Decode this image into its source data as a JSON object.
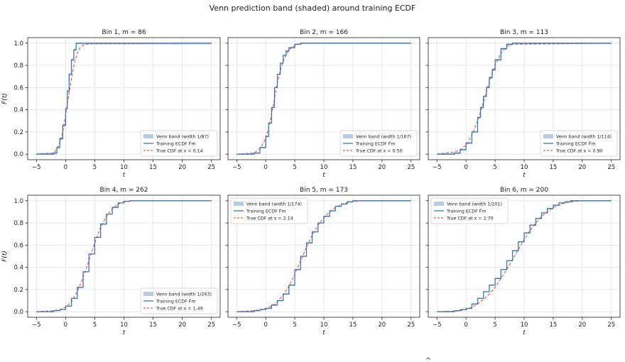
{
  "figure": {
    "suptitle": "Venn prediction band (shaded) around training ECDF",
    "footer_glyph": "^"
  },
  "colors": {
    "band": "#b7cde3",
    "ecdf": "#3a78b0",
    "true_cdf": "#ef5b52",
    "grid": "#e2e2e2",
    "axis": "#222222"
  },
  "chart_data": [
    {
      "type": "line",
      "title": "Bin 1,  m = 86",
      "xlabel": "t",
      "ylabel": "F(t)",
      "xlim": [
        -6.5,
        26.5
      ],
      "ylim": [
        -0.05,
        1.05
      ],
      "xticks": [
        -5,
        0,
        5,
        10,
        15,
        20,
        25
      ],
      "yticks": [
        0.0,
        0.2,
        0.4,
        0.6,
        0.8,
        1.0
      ],
      "grid": true,
      "legend_loc": "lower-right",
      "series": [
        {
          "name": "Venn band (width 1/87)",
          "kind": "band",
          "width": 0.0115
        },
        {
          "name": "Training ECDF F̂m",
          "kind": "step",
          "x": [
            -5,
            -2,
            -1.5,
            -1,
            -0.5,
            0,
            0.3,
            0.6,
            1,
            1.4,
            1.8,
            2.2,
            25
          ],
          "y": [
            0.0,
            0.01,
            0.06,
            0.14,
            0.26,
            0.41,
            0.57,
            0.72,
            0.85,
            0.94,
            1.0,
            1.0,
            1.0
          ]
        },
        {
          "name": "True CDF at x = 0.14",
          "kind": "dashed",
          "x": [
            -5,
            -2,
            -1,
            -0.5,
            0,
            0.5,
            1,
            1.5,
            2,
            2.5,
            3,
            4,
            25
          ],
          "y": [
            0.0,
            0.01,
            0.1,
            0.2,
            0.35,
            0.52,
            0.68,
            0.82,
            0.91,
            0.96,
            0.98,
            0.995,
            1.0
          ]
        }
      ]
    },
    {
      "type": "line",
      "title": "Bin 2,  m = 166",
      "xlabel": "t",
      "ylabel": "",
      "xlim": [
        -6.5,
        26.5
      ],
      "ylim": [
        -0.05,
        1.05
      ],
      "xticks": [
        -5,
        0,
        5,
        10,
        15,
        20,
        25
      ],
      "yticks": [
        0.0,
        0.2,
        0.4,
        0.6,
        0.8,
        1.0
      ],
      "grid": true,
      "legend_loc": "lower-right",
      "series": [
        {
          "name": "Venn band (width 1/167)",
          "kind": "band",
          "width": 0.006
        },
        {
          "name": "Training ECDF F̂m",
          "kind": "step",
          "x": [
            -5,
            -2,
            -1,
            0,
            0.5,
            1,
            1.5,
            2,
            2.5,
            3,
            3.5,
            4,
            5,
            6,
            25
          ],
          "y": [
            0.0,
            0.01,
            0.06,
            0.16,
            0.28,
            0.42,
            0.6,
            0.72,
            0.82,
            0.89,
            0.93,
            0.96,
            0.99,
            1.0,
            1.0
          ]
        },
        {
          "name": "True CDF at x = 0.50",
          "kind": "dashed",
          "x": [
            -5,
            -2,
            -1,
            0,
            0.5,
            1,
            1.5,
            2,
            2.5,
            3,
            4,
            5,
            6,
            7,
            25
          ],
          "y": [
            0.0,
            0.01,
            0.05,
            0.14,
            0.24,
            0.36,
            0.5,
            0.64,
            0.75,
            0.84,
            0.94,
            0.98,
            0.995,
            1.0,
            1.0
          ]
        }
      ]
    },
    {
      "type": "line",
      "title": "Bin 3,  m = 113",
      "xlabel": "t",
      "ylabel": "",
      "xlim": [
        -6.5,
        26.5
      ],
      "ylim": [
        -0.05,
        1.05
      ],
      "xticks": [
        -5,
        0,
        5,
        10,
        15,
        20,
        25
      ],
      "yticks": [
        0.0,
        0.2,
        0.4,
        0.6,
        0.8,
        1.0
      ],
      "grid": true,
      "legend_loc": "lower-right",
      "series": [
        {
          "name": "Venn band (width 1/114)",
          "kind": "band",
          "width": 0.0088
        },
        {
          "name": "Training ECDF F̂m",
          "kind": "step",
          "x": [
            -5,
            -2,
            -1,
            0,
            1,
            2,
            2.5,
            3,
            3.5,
            4,
            4.5,
            5,
            6,
            7,
            8,
            25
          ],
          "y": [
            0.0,
            0.01,
            0.04,
            0.1,
            0.2,
            0.33,
            0.42,
            0.52,
            0.6,
            0.69,
            0.76,
            0.85,
            0.95,
            0.99,
            1.0,
            1.0
          ]
        },
        {
          "name": "True CDF at x = 0.90",
          "kind": "dashed",
          "x": [
            -5,
            -2,
            -1,
            0,
            1,
            2,
            3,
            4,
            5,
            6,
            7,
            8,
            25
          ],
          "y": [
            0.0,
            0.02,
            0.04,
            0.08,
            0.17,
            0.3,
            0.47,
            0.65,
            0.8,
            0.91,
            0.97,
            0.99,
            1.0
          ]
        }
      ]
    },
    {
      "type": "line",
      "title": "Bin 4,  m = 262",
      "xlabel": "t",
      "ylabel": "F(t)",
      "xlim": [
        -6.5,
        26.5
      ],
      "ylim": [
        -0.05,
        1.05
      ],
      "xticks": [
        -5,
        0,
        5,
        10,
        15,
        20,
        25
      ],
      "yticks": [
        0.0,
        0.2,
        0.4,
        0.6,
        0.8,
        1.0
      ],
      "grid": true,
      "legend_loc": "lower-right",
      "series": [
        {
          "name": "Venn band (width 1/263)",
          "kind": "band",
          "width": 0.0038
        },
        {
          "name": "Training ECDF F̂m",
          "kind": "step",
          "x": [
            -5,
            -2,
            -1,
            0,
            1,
            2,
            3,
            4,
            5,
            6,
            7,
            8,
            9,
            10,
            11,
            25
          ],
          "y": [
            0.0,
            0.01,
            0.02,
            0.05,
            0.12,
            0.22,
            0.36,
            0.52,
            0.67,
            0.79,
            0.88,
            0.94,
            0.98,
            0.995,
            1.0,
            1.0
          ]
        },
        {
          "name": "True CDF at x = 1.49",
          "kind": "dashed",
          "x": [
            -5,
            -2,
            -1,
            0,
            1,
            2,
            3,
            4,
            5,
            6,
            7,
            8,
            9,
            10,
            11,
            12,
            25
          ],
          "y": [
            0.0,
            0.01,
            0.02,
            0.04,
            0.09,
            0.18,
            0.31,
            0.46,
            0.62,
            0.76,
            0.86,
            0.93,
            0.97,
            0.99,
            0.995,
            1.0,
            1.0
          ]
        }
      ]
    },
    {
      "type": "line",
      "title": "Bin 5,  m = 173",
      "xlabel": "t",
      "ylabel": "",
      "xlim": [
        -6.5,
        26.5
      ],
      "ylim": [
        -0.05,
        1.05
      ],
      "xticks": [
        -5,
        0,
        5,
        10,
        15,
        20,
        25
      ],
      "yticks": [
        0.0,
        0.2,
        0.4,
        0.6,
        0.8,
        1.0
      ],
      "grid": true,
      "legend_loc": "upper-left",
      "series": [
        {
          "name": "Venn band (width 1/174)",
          "kind": "band",
          "width": 0.0058
        },
        {
          "name": "Training ECDF F̂m",
          "kind": "step",
          "x": [
            -5,
            -2,
            -1,
            0,
            1,
            2,
            3,
            4,
            5,
            6,
            7,
            8,
            9,
            10,
            11,
            12,
            13,
            14,
            15,
            25
          ],
          "y": [
            0.0,
            0.01,
            0.02,
            0.03,
            0.06,
            0.1,
            0.16,
            0.24,
            0.38,
            0.5,
            0.62,
            0.72,
            0.8,
            0.86,
            0.91,
            0.95,
            0.97,
            0.99,
            1.0,
            1.0
          ]
        },
        {
          "name": "True CDF at x = 2.14",
          "kind": "dashed",
          "x": [
            -5,
            -2,
            -1,
            0,
            1,
            2,
            3,
            4,
            5,
            6,
            7,
            8,
            9,
            10,
            11,
            12,
            13,
            14,
            15,
            16,
            25
          ],
          "y": [
            0.0,
            0.01,
            0.02,
            0.03,
            0.05,
            0.09,
            0.15,
            0.23,
            0.34,
            0.46,
            0.58,
            0.69,
            0.78,
            0.85,
            0.9,
            0.94,
            0.97,
            0.98,
            0.99,
            1.0,
            1.0
          ]
        }
      ]
    },
    {
      "type": "line",
      "title": "Bin 6,  m = 200",
      "xlabel": "t",
      "ylabel": "",
      "xlim": [
        -6.5,
        26.5
      ],
      "ylim": [
        -0.05,
        1.05
      ],
      "xticks": [
        -5,
        0,
        5,
        10,
        15,
        20,
        25
      ],
      "yticks": [
        0.0,
        0.2,
        0.4,
        0.6,
        0.8,
        1.0
      ],
      "grid": true,
      "legend_loc": "upper-left",
      "series": [
        {
          "name": "Venn band (width 1/201)",
          "kind": "band",
          "width": 0.005
        },
        {
          "name": "Training ECDF F̂m",
          "kind": "step",
          "x": [
            -5,
            -2,
            -1,
            0,
            1,
            2,
            3,
            4,
            5,
            6,
            7,
            8,
            9,
            10,
            11,
            12,
            13,
            14,
            15,
            16,
            17,
            18,
            25
          ],
          "y": [
            0.0,
            0.01,
            0.02,
            0.03,
            0.07,
            0.12,
            0.18,
            0.24,
            0.3,
            0.38,
            0.46,
            0.55,
            0.63,
            0.71,
            0.78,
            0.84,
            0.89,
            0.93,
            0.96,
            0.98,
            0.99,
            1.0,
            1.0
          ]
        },
        {
          "name": "True CDF at x = 2.70",
          "kind": "dashed",
          "x": [
            -5,
            -2,
            -1,
            0,
            1,
            2,
            3,
            4,
            5,
            6,
            7,
            8,
            9,
            10,
            11,
            12,
            13,
            14,
            15,
            16,
            17,
            18,
            19,
            20,
            25
          ],
          "y": [
            0.0,
            0.005,
            0.01,
            0.02,
            0.04,
            0.07,
            0.11,
            0.16,
            0.22,
            0.3,
            0.38,
            0.47,
            0.56,
            0.65,
            0.73,
            0.8,
            0.86,
            0.9,
            0.94,
            0.96,
            0.98,
            0.99,
            0.995,
            1.0,
            1.0
          ]
        }
      ]
    }
  ]
}
